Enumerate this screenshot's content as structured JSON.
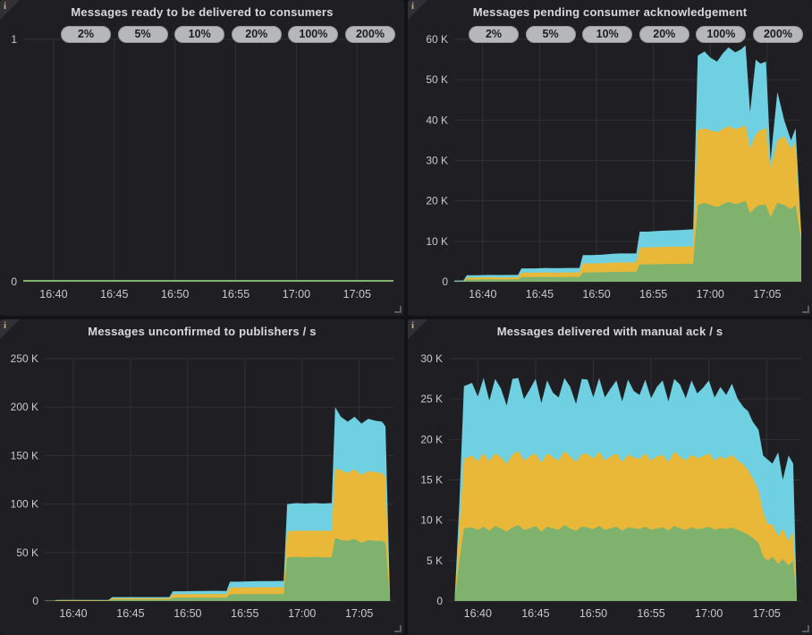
{
  "icons": {
    "info": "i",
    "resize": "corner-drag"
  },
  "colors": {
    "green": "#7EB26D",
    "yellow": "#EAB839",
    "blue": "#6ED0E0",
    "grid": "#303035",
    "axis_text": "#c9cacb",
    "badge_bg": "#b6b7b8",
    "badge_text": "#1c1c1e",
    "panel_bg": "#1f1f23",
    "page_bg": "#131315",
    "title_text": "#d8d9da"
  },
  "panels": [
    {
      "id": "ready",
      "title": "Messages ready to be delivered to consumers",
      "badges": [
        "2%",
        "5%",
        "10%",
        "20%",
        "100%",
        "200%"
      ],
      "chart_data": {
        "type": "area",
        "stacked": true,
        "line_only": true,
        "title": "Messages ready to be delivered to consumers",
        "xlim": [
          7.5,
          38
        ],
        "ylim": [
          0,
          1
        ],
        "x_ticks": [
          {
            "t": 10,
            "label": "16:40"
          },
          {
            "t": 15,
            "label": "16:45"
          },
          {
            "t": 20,
            "label": "16:50"
          },
          {
            "t": 25,
            "label": "16:55"
          },
          {
            "t": 30,
            "label": "17:00"
          },
          {
            "t": 35,
            "label": "17:05"
          }
        ],
        "y_ticks": [
          {
            "v": 0,
            "label": "0"
          },
          {
            "v": 1,
            "label": "1"
          }
        ],
        "x": [
          7.5,
          38
        ],
        "series": [
          {
            "name": "green",
            "color_key": "green",
            "values": [
              0,
              0
            ]
          }
        ]
      }
    },
    {
      "id": "pending",
      "title": "Messages pending consumer acknowledgement",
      "badges": [
        "2%",
        "5%",
        "10%",
        "20%",
        "100%",
        "200%"
      ],
      "chart_data": {
        "type": "area",
        "stacked": true,
        "value_unit": "K",
        "title": "Messages pending consumer acknowledgement",
        "xlim": [
          7.5,
          38
        ],
        "ylim": [
          0,
          60
        ],
        "x_ticks": [
          {
            "t": 10,
            "label": "16:40"
          },
          {
            "t": 15,
            "label": "16:45"
          },
          {
            "t": 20,
            "label": "16:50"
          },
          {
            "t": 25,
            "label": "16:55"
          },
          {
            "t": 30,
            "label": "17:00"
          },
          {
            "t": 35,
            "label": "17:05"
          }
        ],
        "y_ticks": [
          {
            "v": 0,
            "label": "0"
          },
          {
            "v": 10,
            "label": "10 K"
          },
          {
            "v": 20,
            "label": "20 K"
          },
          {
            "v": 30,
            "label": "30 K"
          },
          {
            "v": 40,
            "label": "40 K"
          },
          {
            "v": 50,
            "label": "50 K"
          },
          {
            "v": 60,
            "label": "60 K"
          }
        ],
        "x": [
          7.5,
          8.3,
          8.6,
          9.5,
          10.5,
          11.5,
          12.5,
          13.1,
          13.4,
          14.5,
          15.5,
          16.5,
          17.5,
          18.5,
          18.8,
          19.5,
          20.5,
          21.3,
          22,
          23,
          23.5,
          23.8,
          24.5,
          25.5,
          26.5,
          27.5,
          28.5,
          28.9,
          29.5,
          30,
          30.6,
          31.1,
          31.6,
          32.2,
          32.7,
          33.1,
          33.5,
          34,
          34.4,
          34.9,
          35.3,
          35.9,
          36.5,
          37.1,
          37.5,
          38
        ],
        "series": [
          {
            "name": "green",
            "color_key": "green",
            "values": [
              0.1,
              0.1,
              0.55,
              0.55,
              0.6,
              0.55,
              0.58,
              0.58,
              1.15,
              1.15,
              1.2,
              1.15,
              1.18,
              1.18,
              2.3,
              2.3,
              2.35,
              2.4,
              2.45,
              2.45,
              2.45,
              4.3,
              4.3,
              4.35,
              4.4,
              4.4,
              4.45,
              19,
              19.5,
              19,
              18.5,
              19.2,
              19.8,
              19.2,
              19.6,
              20,
              17,
              18.5,
              19,
              19,
              16,
              19.5,
              19,
              18,
              19,
              10
            ]
          },
          {
            "name": "yellow",
            "color_key": "yellow",
            "values": [
              0.05,
              0.05,
              0.5,
              0.5,
              0.5,
              0.5,
              0.5,
              0.5,
              1.1,
              1.1,
              1.1,
              1.1,
              1.12,
              1.12,
              2.2,
              2.2,
              2.25,
              2.3,
              2.3,
              2.3,
              2.35,
              4.2,
              4.2,
              4.25,
              4.25,
              4.3,
              4.3,
              18.5,
              18.5,
              18.5,
              18.5,
              18.6,
              18.7,
              18.6,
              18.6,
              18.8,
              16,
              18,
              18.5,
              19,
              12,
              15.5,
              17,
              15,
              15.5,
              1.5
            ]
          },
          {
            "name": "blue",
            "color_key": "blue",
            "values": [
              0.15,
              0.15,
              0.55,
              0.55,
              0.6,
              0.6,
              0.62,
              0.62,
              1.05,
              1.05,
              1.1,
              1.1,
              1.1,
              1.1,
              2.1,
              2.1,
              2.1,
              2.2,
              2.25,
              2.25,
              2.2,
              3.9,
              3.9,
              4.0,
              4.05,
              4.1,
              4.25,
              18.5,
              19,
              18,
              17.5,
              18.7,
              19.5,
              19,
              19.3,
              19.7,
              9,
              18.5,
              16.5,
              16.5,
              2,
              12,
              4,
              2,
              3.5,
              0.5
            ]
          }
        ]
      }
    },
    {
      "id": "unconfirmed",
      "title": "Messages unconfirmed to publishers / s",
      "badges": [],
      "chart_data": {
        "type": "area",
        "stacked": true,
        "value_unit": "K",
        "title": "Messages unconfirmed to publishers / s",
        "xlim": [
          7.5,
          38
        ],
        "ylim": [
          0,
          250
        ],
        "x_ticks": [
          {
            "t": 10,
            "label": "16:40"
          },
          {
            "t": 15,
            "label": "16:45"
          },
          {
            "t": 20,
            "label": "16:50"
          },
          {
            "t": 25,
            "label": "16:55"
          },
          {
            "t": 30,
            "label": "17:00"
          },
          {
            "t": 35,
            "label": "17:05"
          }
        ],
        "y_ticks": [
          {
            "v": 0,
            "label": "0"
          },
          {
            "v": 50,
            "label": "50 K"
          },
          {
            "v": 100,
            "label": "100 K"
          },
          {
            "v": 150,
            "label": "150 K"
          },
          {
            "v": 200,
            "label": "200 K"
          },
          {
            "v": 250,
            "label": "250 K"
          }
        ],
        "x": [
          7.5,
          8.3,
          8.6,
          9.5,
          10.5,
          11.5,
          12.5,
          13.1,
          13.4,
          14.5,
          15.5,
          16.5,
          17.5,
          18.4,
          18.7,
          19.5,
          20.5,
          21.5,
          22.5,
          23.4,
          23.7,
          24.5,
          25.5,
          26.5,
          27.5,
          28.4,
          28.7,
          29.5,
          30.3,
          31.1,
          31.9,
          32.6,
          32.9,
          33.4,
          34,
          34.6,
          35.2,
          35.8,
          36.4,
          37,
          37.3,
          37.7,
          38
        ],
        "series": [
          {
            "name": "green",
            "color_key": "green",
            "values": [
              0.15,
              0.15,
              0.5,
              0.5,
              0.5,
              0.5,
              0.5,
              0.5,
              1.5,
              1.5,
              1.5,
              1.5,
              1.5,
              1.5,
              3.5,
              3.5,
              3.6,
              3.6,
              3.6,
              3.6,
              7,
              7,
              7.1,
              7.1,
              7.1,
              7.2,
              45,
              45.5,
              45,
              45.5,
              45,
              45.2,
              65,
              63,
              62,
              64,
              60,
              63,
              62,
              62,
              60,
              0,
              0
            ]
          },
          {
            "name": "yellow",
            "color_key": "yellow",
            "values": [
              0.1,
              0.1,
              0.4,
              0.4,
              0.4,
              0.4,
              0.4,
              0.4,
              1.4,
              1.4,
              1.4,
              1.4,
              1.4,
              1.4,
              3.5,
              3.5,
              3.5,
              3.5,
              3.5,
              3.5,
              7,
              7,
              7,
              7.1,
              7.1,
              7.1,
              27,
              27,
              27.5,
              27,
              27.5,
              27.3,
              72,
              72,
              70,
              72,
              70,
              71,
              71,
              70,
              68,
              0,
              0
            ]
          },
          {
            "name": "blue",
            "color_key": "blue",
            "values": [
              0.05,
              0.05,
              0.3,
              0.3,
              0.3,
              0.3,
              0.3,
              0.3,
              1.1,
              1.1,
              1.1,
              1.1,
              1.1,
              1.1,
              3,
              3,
              3.2,
              3.3,
              3.4,
              3.3,
              6,
              6,
              6.2,
              6.3,
              6.3,
              6.4,
              28,
              28.5,
              28,
              28.5,
              28,
              28.5,
              63,
              55,
              53,
              54,
              53,
              54,
              53,
              53,
              52,
              0,
              0
            ]
          }
        ]
      }
    },
    {
      "id": "delivered",
      "title": "Messages delivered with manual ack / s",
      "badges": [],
      "chart_data": {
        "type": "area",
        "stacked": true,
        "value_unit": "K",
        "title": "Messages delivered with manual ack / s",
        "xlim": [
          7.5,
          38
        ],
        "ylim": [
          0,
          30
        ],
        "x_ticks": [
          {
            "t": 10,
            "label": "16:40"
          },
          {
            "t": 15,
            "label": "16:45"
          },
          {
            "t": 20,
            "label": "16:50"
          },
          {
            "t": 25,
            "label": "16:55"
          },
          {
            "t": 30,
            "label": "17:00"
          },
          {
            "t": 35,
            "label": "17:05"
          }
        ],
        "y_ticks": [
          {
            "v": 0,
            "label": "0"
          },
          {
            "v": 5,
            "label": "5 K"
          },
          {
            "v": 10,
            "label": "10 K"
          },
          {
            "v": 15,
            "label": "15 K"
          },
          {
            "v": 20,
            "label": "20 K"
          },
          {
            "v": 25,
            "label": "25 K"
          },
          {
            "v": 30,
            "label": "30 K"
          }
        ],
        "x": [
          8,
          8.4,
          8.8,
          9.5,
          10,
          10.5,
          11,
          11.5,
          12,
          12.5,
          13,
          13.5,
          14,
          14.5,
          15,
          15.5,
          16,
          16.5,
          17,
          17.5,
          18,
          18.5,
          19,
          19.5,
          20,
          20.5,
          21,
          21.5,
          22,
          22.5,
          23,
          23.5,
          24,
          24.5,
          25,
          25.5,
          26,
          26.5,
          27,
          27.5,
          28,
          28.5,
          29,
          29.5,
          30,
          30.5,
          31,
          31.5,
          32,
          32.5,
          33,
          33.4,
          33.8,
          34.3,
          34.7,
          35.1,
          35.5,
          36,
          36.4,
          36.9,
          37.3,
          37.6
        ],
        "series": [
          {
            "name": "green",
            "color_key": "green",
            "values": [
              0.1,
              5,
              9.0,
              9.1,
              8.8,
              9.2,
              8.7,
              9.3,
              9.0,
              8.6,
              9.1,
              9.4,
              8.8,
              9.0,
              9.3,
              8.6,
              9.2,
              9.0,
              8.8,
              9.4,
              9.0,
              8.7,
              9.2,
              9.1,
              8.9,
              9.3,
              8.8,
              9.0,
              9.2,
              8.7,
              9.1,
              9.0,
              8.9,
              9.2,
              8.8,
              9.0,
              9.1,
              8.7,
              9.3,
              9.0,
              8.8,
              9.1,
              8.9,
              9.0,
              9.2,
              8.8,
              9.0,
              8.9,
              9.1,
              8.8,
              8.5,
              8.2,
              7.8,
              7.2,
              5.5,
              5.0,
              5.5,
              4.6,
              5.2,
              4.4,
              5.0,
              0.3
            ]
          },
          {
            "name": "yellow",
            "color_key": "yellow",
            "values": [
              0.1,
              4,
              8.6,
              8.9,
              8.5,
              9.1,
              8.6,
              9.0,
              8.8,
              8.4,
              9.0,
              9.2,
              8.6,
              8.9,
              9.0,
              8.5,
              9.1,
              8.8,
              8.6,
              9.2,
              8.9,
              8.5,
              9.0,
              9.1,
              8.7,
              9.2,
              8.6,
              8.9,
              9.1,
              8.5,
              9.0,
              8.8,
              8.7,
              9.1,
              8.6,
              8.9,
              9.0,
              8.5,
              9.2,
              8.9,
              8.6,
              9.0,
              8.8,
              8.9,
              9.1,
              8.6,
              8.9,
              8.7,
              9.0,
              8.6,
              8.4,
              8.0,
              7.4,
              6.5,
              5.5,
              4.5,
              4.0,
              3.4,
              3.8,
              3.0,
              3.5,
              0.2
            ]
          },
          {
            "name": "blue",
            "color_key": "blue",
            "values": [
              0.1,
              3,
              9.0,
              9.0,
              8.0,
              9.3,
              7.5,
              9.2,
              8.5,
              7.2,
              9.4,
              9.0,
              7.6,
              8.3,
              9.2,
              7.4,
              9.0,
              8.0,
              7.8,
              9.0,
              8.6,
              7.2,
              9.3,
              9.2,
              7.6,
              9.1,
              7.8,
              8.4,
              9.0,
              7.5,
              9.3,
              8.2,
              7.9,
              9.1,
              7.7,
              8.6,
              9.2,
              7.5,
              9.0,
              8.9,
              7.7,
              9.2,
              8.0,
              8.5,
              9.0,
              7.8,
              8.6,
              7.9,
              8.8,
              7.6,
              7.1,
              7.3,
              7.0,
              7.5,
              7.0,
              8.0,
              7.5,
              10.4,
              6.0,
              10.6,
              8.5,
              0.3
            ]
          }
        ]
      }
    }
  ]
}
